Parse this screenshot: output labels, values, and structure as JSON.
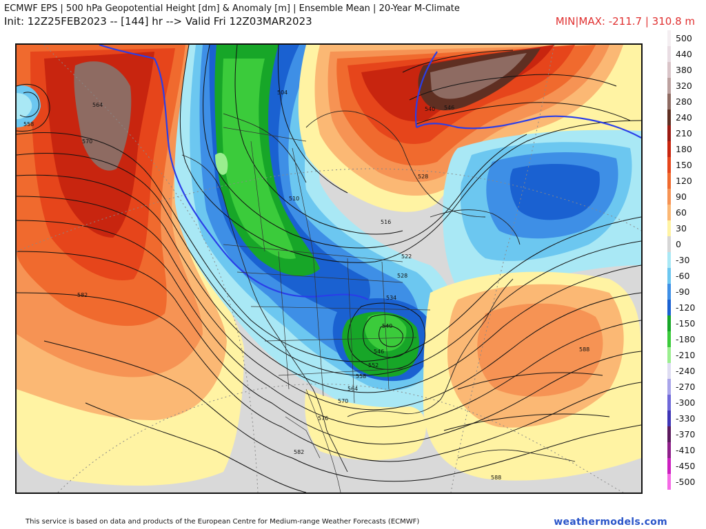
{
  "header": {
    "title_line1": "ECMWF EPS | 500 hPa Geopotential Height [dm] & Anomaly [m] | Ensemble Mean | 20-Year M-Climate",
    "title_line2": "Init: 12Z25FEB2023 -- [144] hr --> Valid Fri 12Z03MAR2023",
    "minmax": "MIN|MAX: -211.7 | 310.8 m"
  },
  "legend": {
    "items": [
      {
        "label": "500",
        "color": "#f4eef1"
      },
      {
        "label": "440",
        "color": "#e9dde3"
      },
      {
        "label": "380",
        "color": "#d9c4c8"
      },
      {
        "label": "320",
        "color": "#bca19f"
      },
      {
        "label": "280",
        "color": "#8e6b62"
      },
      {
        "label": "240",
        "color": "#5f2f22"
      },
      {
        "label": "210",
        "color": "#9b1a12"
      },
      {
        "label": "180",
        "color": "#c8250f"
      },
      {
        "label": "150",
        "color": "#e6451b"
      },
      {
        "label": "120",
        "color": "#f06a2e"
      },
      {
        "label": "90",
        "color": "#f69354"
      },
      {
        "label": "60",
        "color": "#fbb874"
      },
      {
        "label": "30",
        "color": "#fff3a3"
      },
      {
        "label": "0",
        "color": "#d6d6d6"
      },
      {
        "label": "-30",
        "color": "#a9e8f5"
      },
      {
        "label": "-60",
        "color": "#6cc7f0"
      },
      {
        "label": "-90",
        "color": "#3e8fe6"
      },
      {
        "label": "-120",
        "color": "#1a61d1"
      },
      {
        "label": "-150",
        "color": "#17a628"
      },
      {
        "label": "-180",
        "color": "#3bcb3b"
      },
      {
        "label": "-210",
        "color": "#9aee8f"
      },
      {
        "label": "-240",
        "color": "#dedcf2"
      },
      {
        "label": "-270",
        "color": "#a9a5ea"
      },
      {
        "label": "-300",
        "color": "#6f68d9"
      },
      {
        "label": "-330",
        "color": "#3f35b6"
      },
      {
        "label": "-370",
        "color": "#5b1a5e"
      },
      {
        "label": "-410",
        "color": "#8e1f8a"
      },
      {
        "label": "-450",
        "color": "#cc1fc0"
      },
      {
        "label": "-500",
        "color": "#f56ae6"
      }
    ]
  },
  "map": {
    "contour_labels": [
      "558",
      "564",
      "570",
      "582",
      "504",
      "510",
      "516",
      "522",
      "528",
      "534",
      "540",
      "546",
      "552",
      "558",
      "564",
      "570",
      "576",
      "582",
      "588",
      "588",
      "540",
      "546",
      "528"
    ]
  },
  "footer": {
    "disclaimer": "This service is based on data and products of the European Centre for Medium-range Weather Forecasts (ECMWF)",
    "brand": "weathermodels.com"
  }
}
